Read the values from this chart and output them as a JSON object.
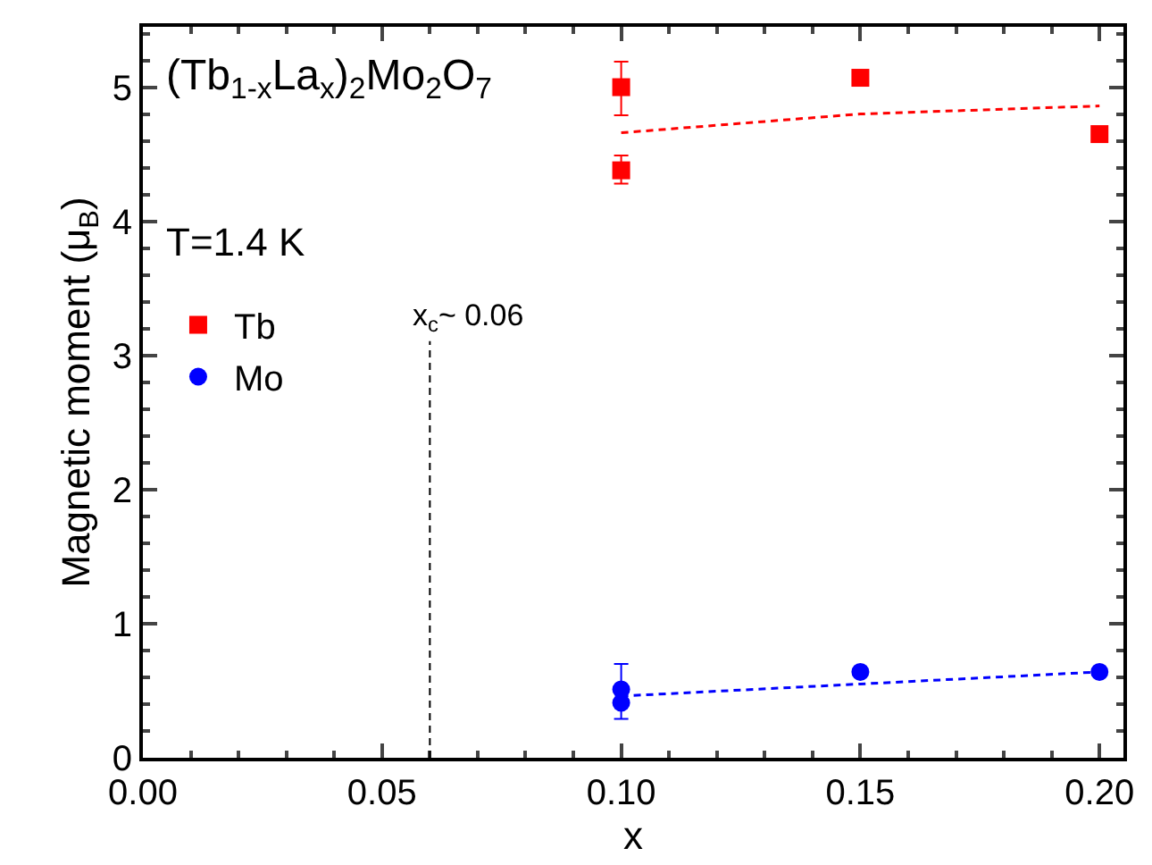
{
  "chart_data": {
    "type": "scatter",
    "xlabel": "x",
    "ylabel": "Magnetic moment (μ$_{B}$)",
    "annotations": [
      "(Tb$_{1-x}$La$_{x}$)$_{2}$Mo$_{2}$O$_{7}$",
      "T=1.4 K"
    ],
    "series": [
      {
        "name": "Tb",
        "color": "#ff0000",
        "marker": "square",
        "x": [
          0.1,
          0.1,
          0.15,
          0.2
        ],
        "values": [
          5.0,
          4.38,
          5.07,
          4.65
        ],
        "errors": [
          [
            4.79,
            5.19
          ],
          [
            4.28,
            4.49
          ],
          null,
          null
        ]
      },
      {
        "name": "Mo",
        "color": "#0000ff",
        "marker": "circle",
        "x": [
          0.1,
          0.1,
          0.15,
          0.2
        ],
        "values": [
          0.51,
          0.41,
          0.64,
          0.64
        ],
        "errors": [
          [
            0.51,
            0.7
          ],
          [
            0.29,
            0.41
          ],
          null,
          null
        ]
      },
      {
        "type": "line",
        "color": "#ff0000",
        "line_style": "dashed",
        "marker": "none",
        "x": [
          0.1,
          0.15,
          0.2
        ],
        "values": [
          4.66,
          4.8,
          4.86
        ]
      },
      {
        "type": "line",
        "color": "#0000ff",
        "line_style": "dashed",
        "marker": "none",
        "x": [
          0.1,
          0.15,
          0.2
        ],
        "values": [
          0.46,
          0.55,
          0.64
        ]
      }
    ],
    "ref_lines": [
      {
        "axis": "x",
        "value": 0.06,
        "label": "x$_{c}$~ 0.06",
        "color": "#000000",
        "line_style": "dashed"
      }
    ],
    "xlim": [
      0,
      0.205
    ],
    "ylim": [
      0,
      5.45
    ],
    "xticks": [
      {
        "value": 0,
        "label": "0.00"
      },
      {
        "value": 0.05,
        "label": "0.05"
      },
      {
        "value": 0.1,
        "label": "0.10"
      },
      {
        "value": 0.15,
        "label": "0.15"
      },
      {
        "value": 0.2,
        "label": "0.20"
      }
    ],
    "yticks": [
      0,
      1,
      2,
      3,
      4,
      5
    ],
    "legend": "left"
  }
}
